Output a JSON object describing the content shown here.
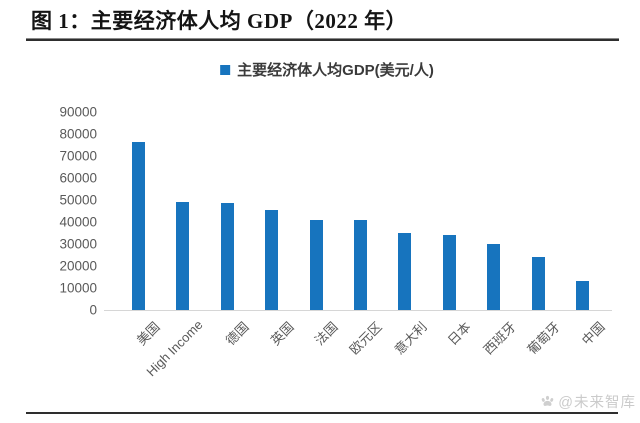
{
  "page": {
    "title": "图 1：主要经济体人均 GDP（2022 年）",
    "watermark": {
      "icon": "paw-icon",
      "text": "@未来智库"
    }
  },
  "chart_data": {
    "type": "bar",
    "title": "",
    "legend": "主要经济体人均GDP(美元/人)",
    "legend_position": "top",
    "categories": [
      "美国",
      "High Income",
      "德国",
      "英国",
      "法国",
      "欧元区",
      "意大利",
      "日本",
      "西班牙",
      "葡萄牙",
      "中国"
    ],
    "values": [
      76400,
      49300,
      48500,
      45300,
      41000,
      40800,
      34900,
      33900,
      30000,
      24000,
      13000
    ],
    "unit": "美元/人",
    "xlabel": "",
    "ylabel": "",
    "ylim": [
      0,
      90000
    ],
    "yticks": [
      0,
      10000,
      20000,
      30000,
      40000,
      50000,
      60000,
      70000,
      80000,
      90000
    ],
    "grid": false,
    "bar_color": "#1774BE",
    "axis_label_color": "#595959",
    "baseline_color": "#d6d6d6"
  }
}
